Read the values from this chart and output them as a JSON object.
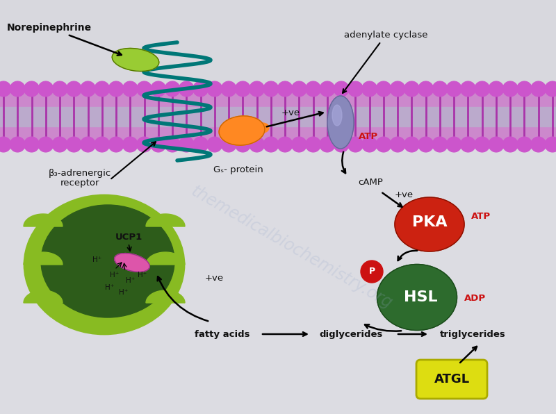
{
  "bg_color_top": "#d8d8de",
  "bg_color_bot": "#e8e8ec",
  "watermark": "themedicalbiochemistry.org",
  "labels": {
    "norepinephrine": "Norepinephrine",
    "beta3_line1": "β₃-adrenergic",
    "beta3_line2": "receptor",
    "gs_protein": "Gₛ- protein",
    "adenylate_cyclase": "adenylate cyclase",
    "atp1": "ATP",
    "camp": "cAMP",
    "plus_ve1": "+ve",
    "plus_ve2": "+ve",
    "plus_ve3": "+ve",
    "pka": "PKA",
    "atp2": "ATP",
    "adp": "ADP",
    "hsl": "HSL",
    "p_label": "P",
    "ucp1": "UCP1",
    "fatty_acids": "fatty acids",
    "diglycerides": "diglycerides",
    "triglycerides": "triglycerides",
    "atgl": "ATGL",
    "hplus": "H⁺"
  },
  "colors": {
    "norepinephrine_body": "#99cc33",
    "receptor_helix": "#007777",
    "gs_protein": "#ff8822",
    "adenylate_cyclase": "#8888bb",
    "pka": "#cc2211",
    "hsl": "#2d6b2d",
    "p_circle": "#cc1111",
    "atgl": "#dddd11",
    "mitochondria_outer": "#88bb22",
    "mitochondria_inner": "#2d5c1a",
    "ucp1": "#dd55aa",
    "text_red": "#cc1111",
    "text_dark": "#111111",
    "watermark": "#99aacc",
    "membrane_head": "#cc55cc",
    "membrane_tail": "#aa33aa",
    "membrane_rect": "#cc88cc"
  }
}
